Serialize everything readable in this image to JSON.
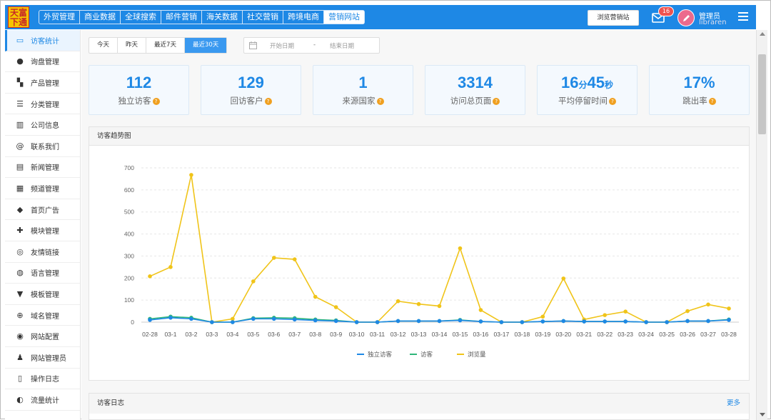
{
  "header": {
    "logo_text": "天富下通",
    "nav": [
      "外贸管理",
      "商业数据",
      "全球搜索",
      "邮件营销",
      "海关数据",
      "社交营销",
      "跨境电商",
      "营销网站"
    ],
    "nav_active_index": 7,
    "site_button": "浏览营销站",
    "mail_icon": "envelope-icon",
    "mail_count": "16",
    "user_role": "管理员",
    "user_name": "libraren",
    "colors": {
      "bar": "#1e88e5",
      "badge": "#ef5350",
      "avatar": "#ec6a8d"
    }
  },
  "sidebar": {
    "items": [
      {
        "label": "访客统计",
        "icon": "monitor-icon",
        "active": true
      },
      {
        "label": "询盘管理",
        "icon": "chat-icon"
      },
      {
        "label": "产品管理",
        "icon": "products-icon"
      },
      {
        "label": "分类管理",
        "icon": "category-icon"
      },
      {
        "label": "公司信息",
        "icon": "building-icon"
      },
      {
        "label": "联系我们",
        "icon": "at-icon"
      },
      {
        "label": "新闻管理",
        "icon": "news-icon"
      },
      {
        "label": "频道管理",
        "icon": "grid-icon"
      },
      {
        "label": "首页广告",
        "icon": "cube-icon"
      },
      {
        "label": "模块管理",
        "icon": "puzzle-icon"
      },
      {
        "label": "友情链接",
        "icon": "compass-icon"
      },
      {
        "label": "语言管理",
        "icon": "globe-icon"
      },
      {
        "label": "模板管理",
        "icon": "shirt-icon"
      },
      {
        "label": "域名管理",
        "icon": "globe-grid-icon"
      },
      {
        "label": "网站配置",
        "icon": "user-config-icon"
      },
      {
        "label": "网站管理员",
        "icon": "admin-icon"
      },
      {
        "label": "操作日志",
        "icon": "log-icon"
      },
      {
        "label": "流量统计",
        "icon": "traffic-icon"
      }
    ]
  },
  "filters": {
    "ranges": [
      "今天",
      "昨天",
      "最近7天",
      "最近30天"
    ],
    "active_range_index": 3,
    "start_placeholder": "开始日期",
    "separator": "-",
    "end_placeholder": "结束日期"
  },
  "stats": [
    {
      "value": "112",
      "label": "独立访客"
    },
    {
      "value_parts": [
        "16",
        "分",
        "45",
        "秒"
      ],
      "label": "平均停留时间"
    },
    {
      "value": "129",
      "label": "回访客户"
    },
    {
      "value": "1",
      "label": "来源国家"
    },
    {
      "value": "3314",
      "label": "访问总页面"
    },
    {
      "value": "17%",
      "label": "跳出率"
    }
  ],
  "trend_panel": {
    "title": "访客趋势图"
  },
  "log_panel": {
    "title": "访客日志",
    "more": "更多"
  },
  "chart_data": {
    "type": "line",
    "title": "",
    "xlabel": "",
    "ylabel": "",
    "ylim": [
      0,
      700
    ],
    "yticks": [
      0,
      100,
      200,
      300,
      400,
      500,
      600,
      700
    ],
    "grid": true,
    "legend_position": "bottom",
    "categories": [
      "02-28",
      "03-1",
      "03-2",
      "03-3",
      "03-4",
      "03-5",
      "03-6",
      "03-7",
      "03-8",
      "03-9",
      "03-10",
      "03-11",
      "03-12",
      "03-13",
      "03-14",
      "03-15",
      "03-16",
      "03-17",
      "03-18",
      "03-19",
      "03-20",
      "03-21",
      "03-22",
      "03-23",
      "03-24",
      "03-25",
      "03-26",
      "03-27",
      "03-28"
    ],
    "series": [
      {
        "name": "独立访客",
        "color": "#1e88e5",
        "values": [
          10,
          20,
          15,
          0,
          0,
          15,
          15,
          12,
          8,
          5,
          0,
          0,
          5,
          5,
          5,
          8,
          3,
          0,
          0,
          3,
          5,
          3,
          3,
          3,
          0,
          0,
          5,
          5,
          10
        ]
      },
      {
        "name": "访客",
        "color": "#2fb67a",
        "values": [
          15,
          25,
          20,
          0,
          0,
          18,
          20,
          18,
          12,
          8,
          0,
          0,
          5,
          5,
          5,
          10,
          3,
          0,
          0,
          3,
          5,
          3,
          3,
          3,
          0,
          0,
          5,
          5,
          12
        ]
      },
      {
        "name": "浏览量",
        "color": "#f0c419",
        "values": [
          208,
          250,
          668,
          0,
          15,
          185,
          292,
          285,
          115,
          68,
          0,
          0,
          95,
          82,
          73,
          335,
          55,
          0,
          0,
          25,
          198,
          12,
          32,
          48,
          0,
          0,
          50,
          80,
          62
        ]
      }
    ]
  }
}
